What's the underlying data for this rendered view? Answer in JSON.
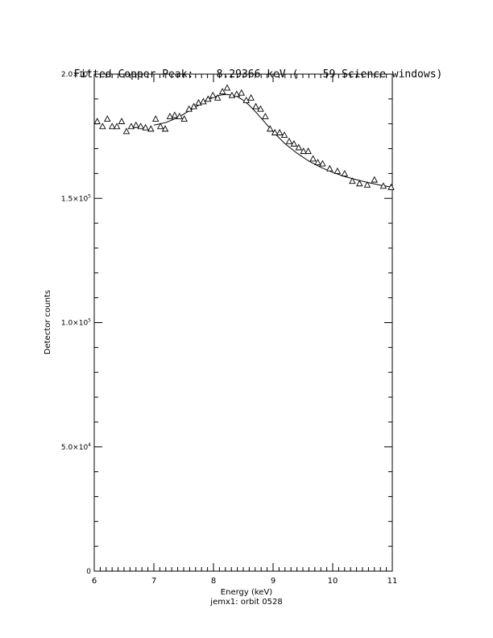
{
  "title": {
    "label": "Fitted Copper Peak:",
    "energy": "8.29366 keV (",
    "windows": "59 Science windows)"
  },
  "footer": {
    "xlabel": "Energy (keV)",
    "subtitle": "jemx1: orbit 0528"
  },
  "chart_data": {
    "type": "scatter",
    "title": "Fitted Copper Peak:      8.29366 keV (      59 Science windows)",
    "xlabel": "Energy (keV)",
    "ylabel": "Detector counts",
    "xlim": [
      6,
      11
    ],
    "ylim": [
      0,
      200000
    ],
    "x_ticks": [
      6,
      7,
      8,
      9,
      10,
      11
    ],
    "y_ticks": [
      {
        "value": 0,
        "label": "0"
      },
      {
        "value": 50000,
        "label": "5.0×10",
        "exp": "4"
      },
      {
        "value": 100000,
        "label": "1.0×10",
        "exp": "5"
      },
      {
        "value": 150000,
        "label": "1.5×10",
        "exp": "5"
      },
      {
        "value": 200000,
        "label": "2.0×10",
        "exp": "5"
      }
    ],
    "series": [
      {
        "marker": "triangle",
        "x": [
          6.05,
          6.14,
          6.22,
          6.3,
          6.38,
          6.46,
          6.54,
          6.62,
          6.7,
          6.78,
          6.86,
          6.95,
          7.03,
          7.11,
          7.19,
          7.27,
          7.35,
          7.43,
          7.51,
          7.59,
          7.67,
          7.75,
          7.83,
          7.91,
          7.99,
          8.07,
          8.15,
          8.23,
          8.31,
          8.39,
          8.47,
          8.55,
          8.63,
          8.71,
          8.79,
          8.87,
          8.95,
          9.03,
          9.11,
          9.19,
          9.27,
          9.35,
          9.43,
          9.51,
          9.59,
          9.67,
          9.75,
          9.83,
          9.95,
          10.08,
          10.2,
          10.33,
          10.45,
          10.58,
          10.7,
          10.85,
          10.98
        ],
        "y": [
          181000,
          179000,
          182000,
          179000,
          179000,
          181000,
          177000,
          179000,
          179500,
          179000,
          178500,
          178000,
          182000,
          179000,
          178000,
          183000,
          183500,
          183000,
          182000,
          186000,
          187000,
          188500,
          189000,
          190000,
          191500,
          190500,
          193000,
          194500,
          191500,
          192000,
          192500,
          189500,
          190500,
          187000,
          186000,
          183000,
          178000,
          176500,
          176500,
          175500,
          173000,
          172000,
          170500,
          169000,
          169000,
          166000,
          164500,
          164000,
          162000,
          161000,
          160000,
          157000,
          156000,
          155500,
          157500,
          155000,
          154500
        ]
      },
      {
        "type": "line",
        "x": [
          7.0,
          7.2,
          7.4,
          7.6,
          7.8,
          8.0,
          8.1,
          8.2,
          8.3,
          8.4,
          8.5,
          8.6,
          8.7,
          8.8,
          8.9,
          9.0,
          9.2,
          9.4,
          9.6,
          9.8,
          10.0,
          10.2,
          10.4,
          10.6,
          10.8,
          11.0
        ],
        "y": [
          179500,
          180500,
          182500,
          185300,
          188200,
          190700,
          191500,
          191800,
          191600,
          191000,
          189500,
          187500,
          185000,
          182300,
          179500,
          176800,
          172000,
          168200,
          165000,
          162500,
          160500,
          158800,
          157500,
          156300,
          155300,
          154500
        ]
      }
    ]
  }
}
